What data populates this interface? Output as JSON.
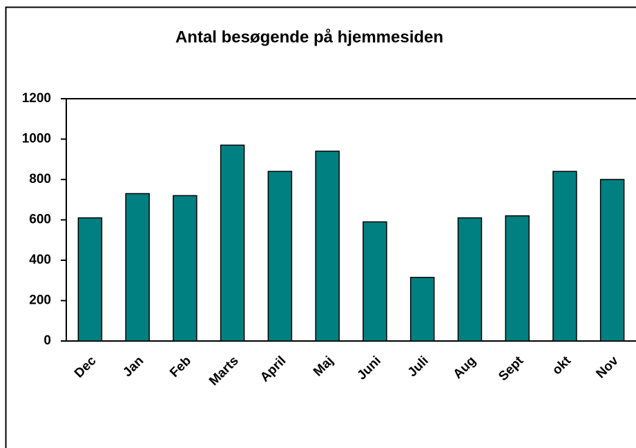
{
  "chart_data": {
    "type": "bar",
    "title": "Antal besøgende på hjemmesiden",
    "categories": [
      "Dec",
      "Jan",
      "Feb",
      "Marts",
      "April",
      "Maj",
      "Juni",
      "Juli",
      "Aug",
      "Sept",
      "okt",
      "Nov"
    ],
    "values": [
      610,
      730,
      720,
      970,
      840,
      940,
      590,
      315,
      610,
      620,
      840,
      800
    ],
    "color": "#008080",
    "ylim": [
      0,
      1200
    ],
    "yticks": [
      0,
      200,
      400,
      600,
      800,
      1000,
      1200
    ],
    "grid": false
  }
}
